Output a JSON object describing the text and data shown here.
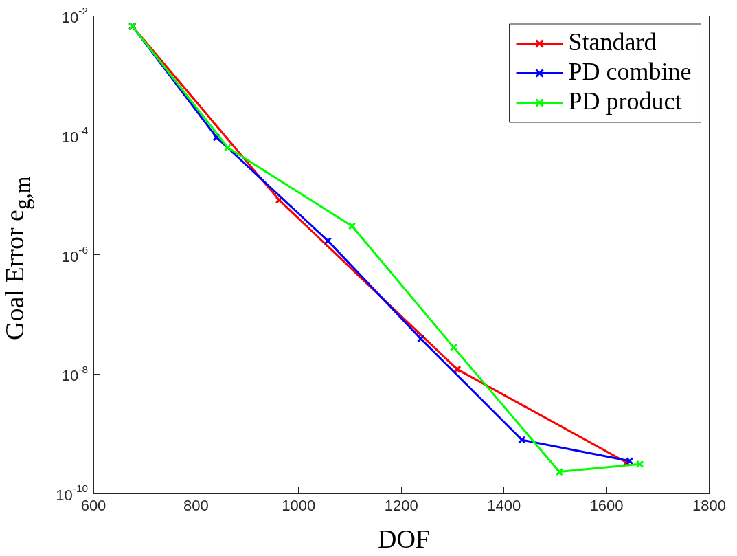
{
  "chart_data": {
    "type": "line",
    "xlabel": "DOF",
    "ylabel": "Goal Error e$_{g,m}$",
    "xlim": [
      600,
      1800
    ],
    "xticks": [
      600,
      800,
      1000,
      1200,
      1400,
      1600,
      1800
    ],
    "ylim": [
      1e-10,
      0.01
    ],
    "yticks": [
      {
        "value": 1e-10,
        "label": "10$^{-10}$"
      },
      {
        "value": 1e-08,
        "label": "10$^{-8}$"
      },
      {
        "value": 1e-06,
        "label": "10$^{-6}$"
      },
      {
        "value": 0.0001,
        "label": "10$^{-4}$"
      },
      {
        "value": 0.01,
        "label": "10$^{-2}$"
      }
    ],
    "log": "y",
    "grid": false,
    "legend": "top right",
    "marker": "cross",
    "line_style": "solid",
    "series": [
      {
        "name": "Standard",
        "color": "#ff0000",
        "x": [
          676,
          962,
          1309,
          1639
        ],
        "values": [
          0.0067,
          8.2e-06,
          1.2e-08,
          3.3e-10
        ]
      },
      {
        "name": "PD combine",
        "color": "#0000ff",
        "x": [
          676,
          840,
          1057,
          1238,
          1435,
          1645
        ],
        "values": [
          0.0067,
          9.2e-05,
          1.7e-06,
          3.9e-08,
          7.9e-10,
          3.5e-10
        ]
      },
      {
        "name": "PD product",
        "color": "#00ff00",
        "x": [
          676,
          862,
          1104,
          1302,
          1508,
          1665
        ],
        "values": [
          0.0067,
          6.2e-05,
          3e-06,
          2.8e-08,
          2.3e-10,
          3.1e-10
        ]
      }
    ]
  }
}
